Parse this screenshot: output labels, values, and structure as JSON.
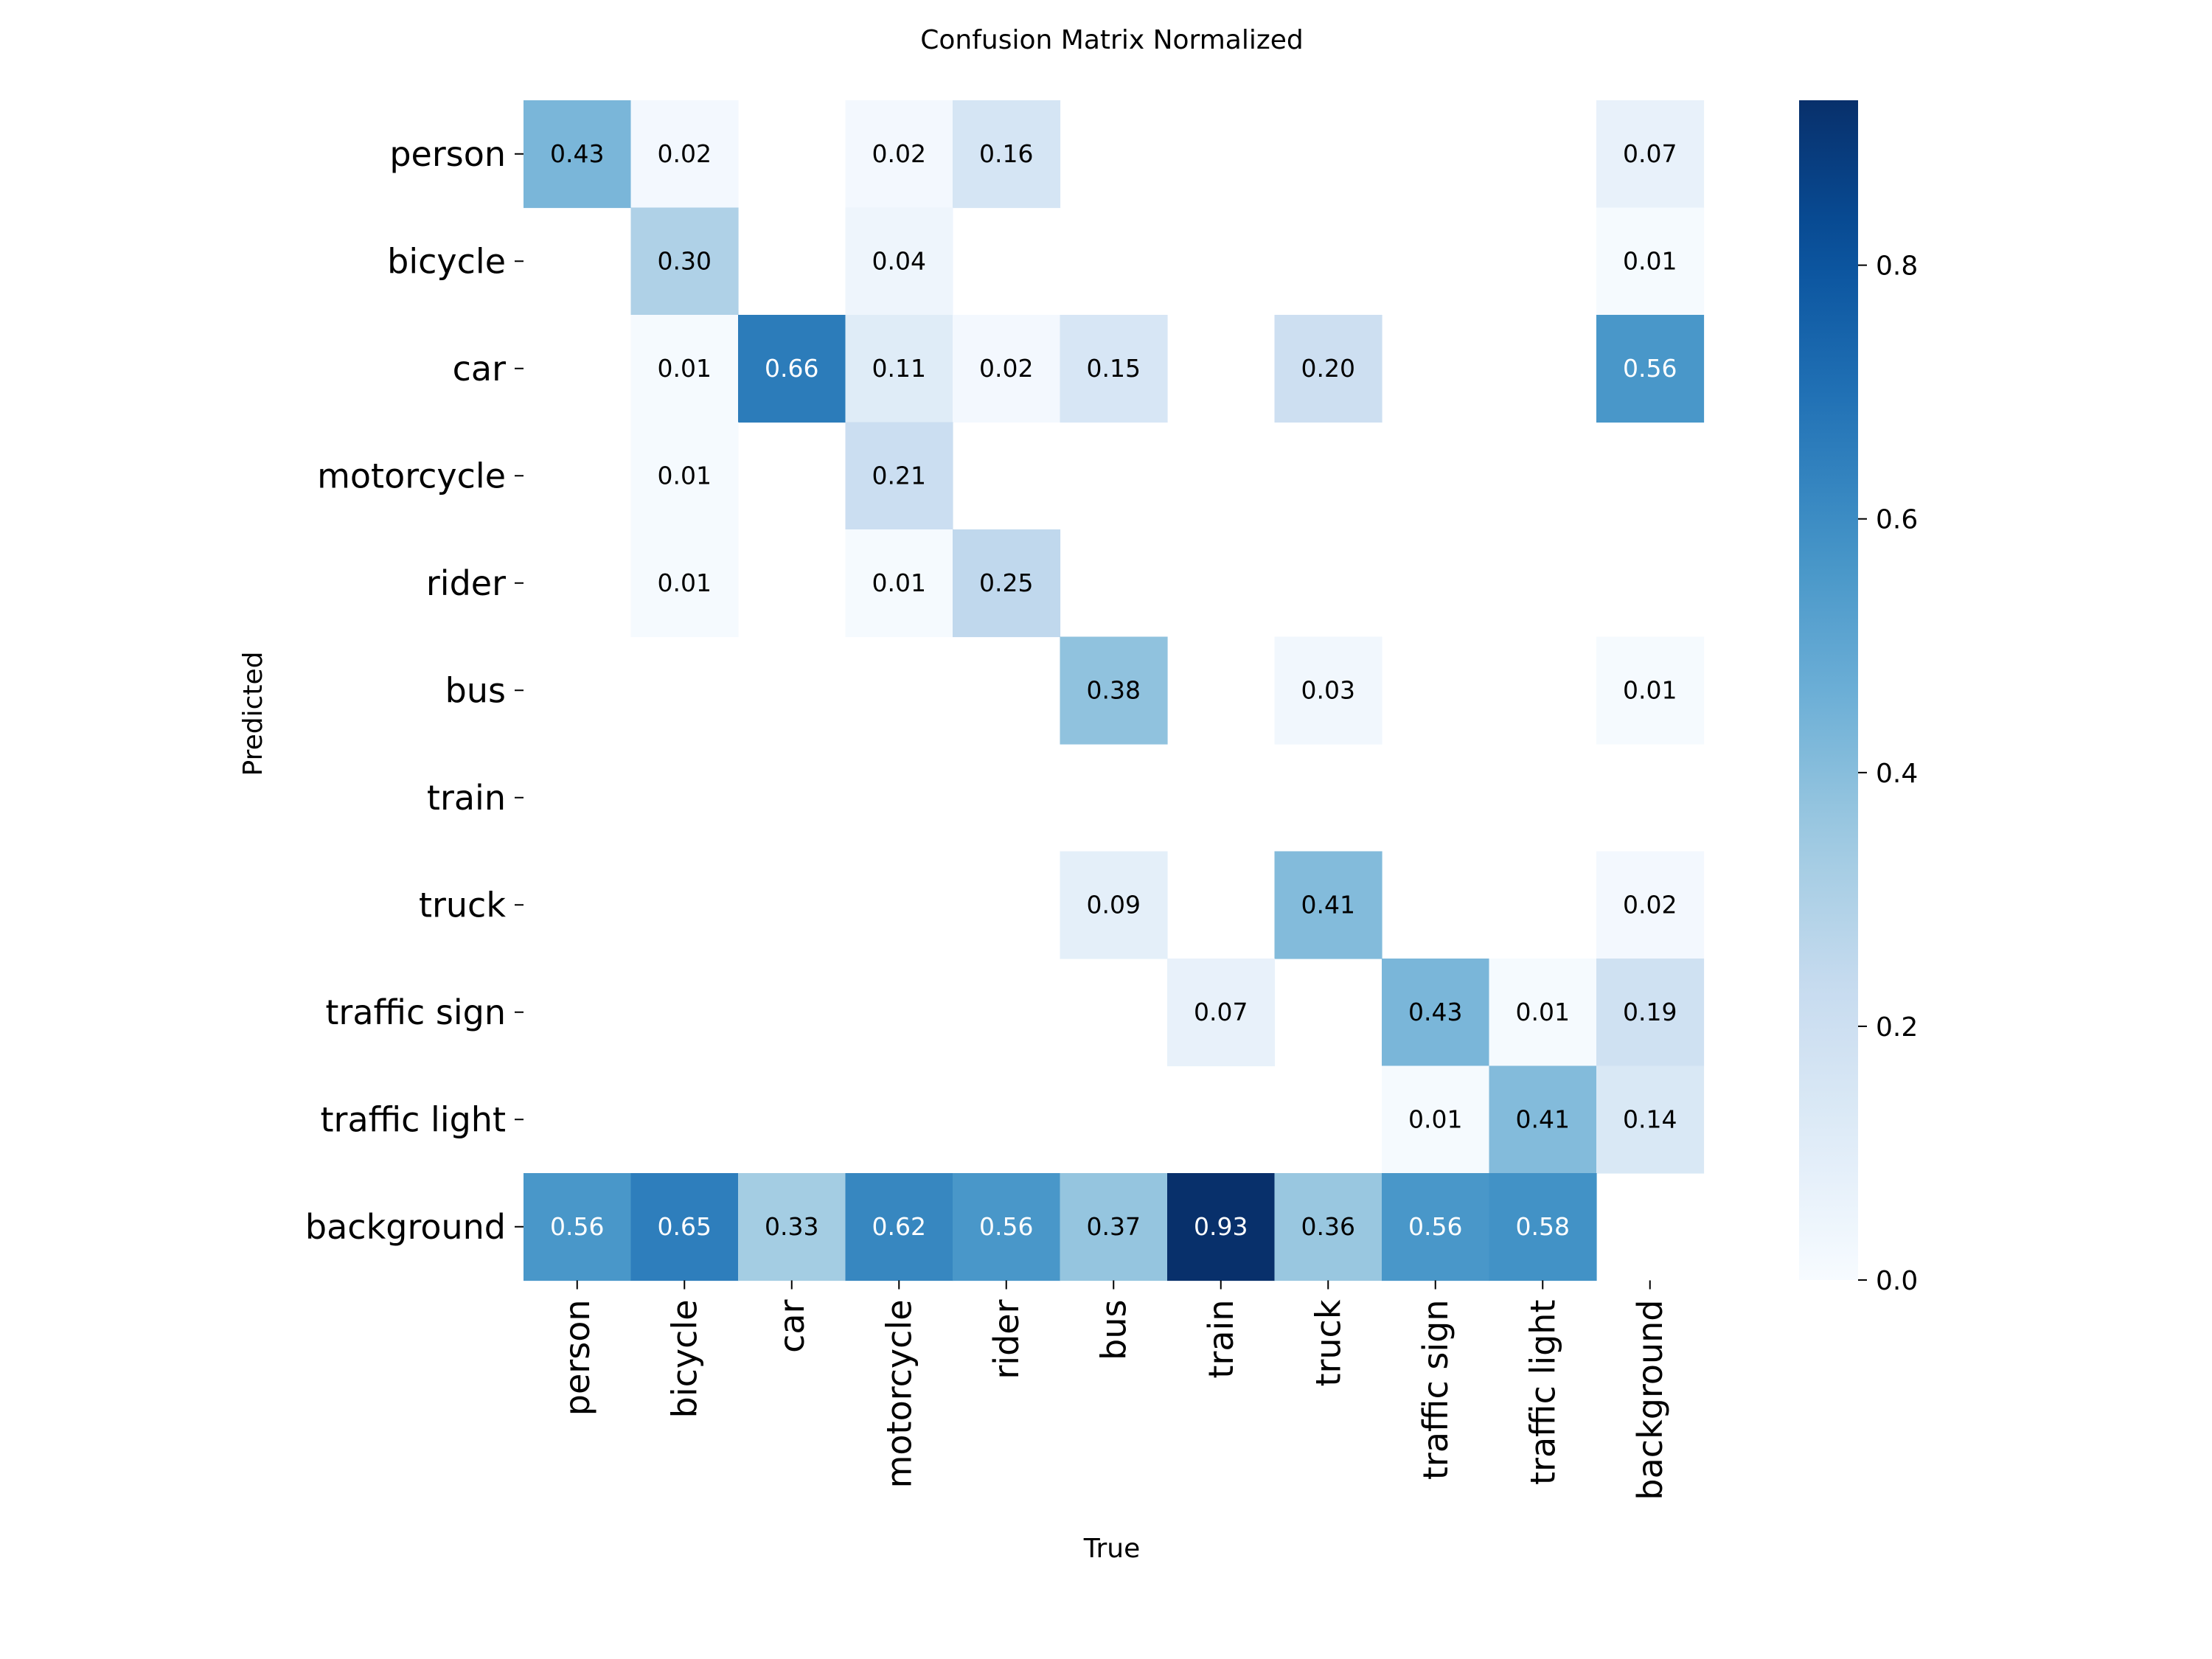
{
  "chart_data": {
    "type": "heatmap",
    "title": "Confusion Matrix Normalized",
    "xlabel": "True",
    "ylabel": "Predicted",
    "x_categories": [
      "person",
      "bicycle",
      "car",
      "motorcycle",
      "rider",
      "bus",
      "train",
      "truck",
      "traffic sign",
      "traffic light",
      "background"
    ],
    "y_categories": [
      "person",
      "bicycle",
      "car",
      "motorcycle",
      "rider",
      "bus",
      "train",
      "truck",
      "traffic sign",
      "traffic light",
      "background"
    ],
    "values": [
      [
        0.43,
        0.02,
        null,
        0.02,
        0.16,
        null,
        null,
        null,
        null,
        null,
        0.07
      ],
      [
        null,
        0.3,
        null,
        0.04,
        null,
        null,
        null,
        null,
        null,
        null,
        0.01
      ],
      [
        null,
        0.01,
        0.66,
        0.11,
        0.02,
        0.15,
        null,
        0.2,
        null,
        null,
        0.56
      ],
      [
        null,
        0.01,
        null,
        0.21,
        null,
        null,
        null,
        null,
        null,
        null,
        null
      ],
      [
        null,
        0.01,
        null,
        0.01,
        0.25,
        null,
        null,
        null,
        null,
        null,
        null
      ],
      [
        null,
        null,
        null,
        null,
        null,
        0.38,
        null,
        0.03,
        null,
        null,
        0.01
      ],
      [
        null,
        null,
        null,
        null,
        null,
        null,
        null,
        null,
        null,
        null,
        null
      ],
      [
        null,
        null,
        null,
        null,
        null,
        0.09,
        null,
        0.41,
        null,
        null,
        0.02
      ],
      [
        null,
        null,
        null,
        null,
        null,
        null,
        0.07,
        null,
        0.43,
        0.01,
        0.19
      ],
      [
        null,
        null,
        null,
        null,
        null,
        null,
        null,
        null,
        0.01,
        0.41,
        0.14
      ],
      [
        0.56,
        0.65,
        0.33,
        0.62,
        0.56,
        0.37,
        0.93,
        0.36,
        0.56,
        0.58,
        null
      ]
    ],
    "colormap": "Blues",
    "color_low": "#f7fbff",
    "color_high": "#08306b",
    "vmin": 0.0,
    "vmax": 0.93,
    "colorbar_ticks": [
      "0.0",
      "0.2",
      "0.4",
      "0.6",
      "0.8"
    ],
    "colorbar_tick_values": [
      0.0,
      0.2,
      0.4,
      0.6,
      0.8
    ],
    "legend": "colorbar-right"
  }
}
